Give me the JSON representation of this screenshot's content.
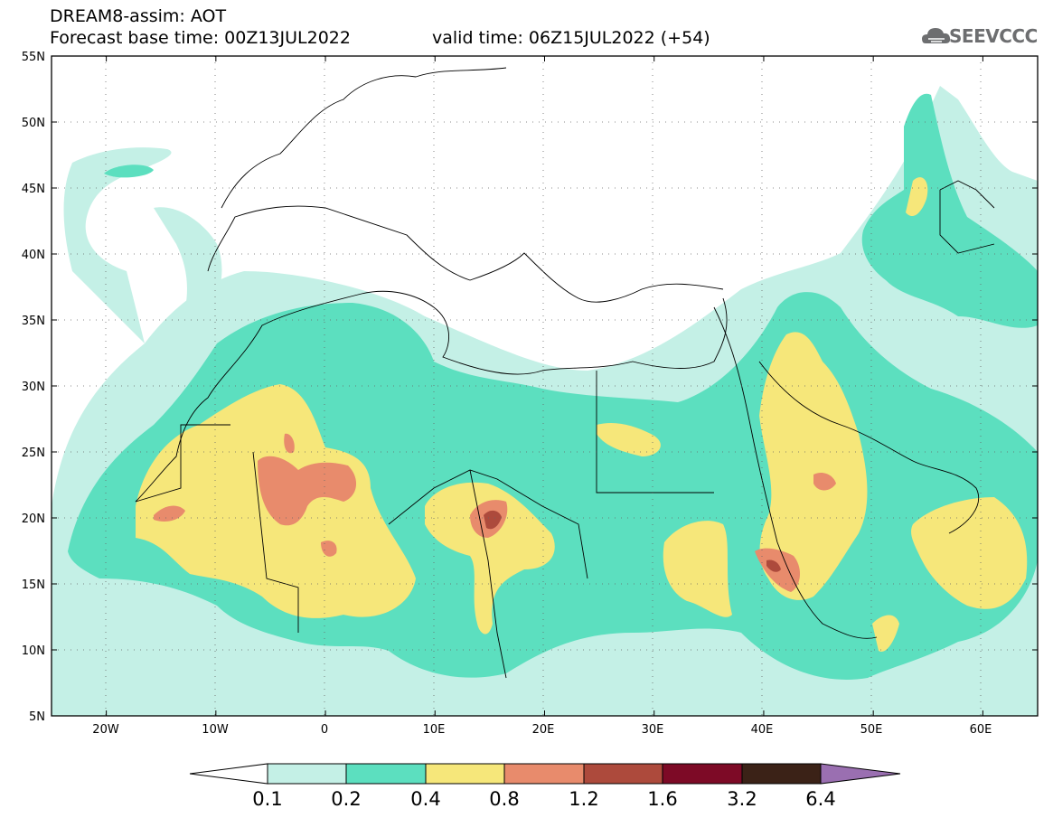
{
  "header": {
    "line1": "DREAM8-assim: AOT",
    "line2": "Forecast base time: 00Z13JUL2022",
    "valid": "valid time: 06Z15JUL2022 (+54)"
  },
  "logo": {
    "text": "SEEVCCC",
    "icon": "cloud-icon",
    "color": "#6d6e70"
  },
  "map": {
    "lon_range": [
      -25,
      65
    ],
    "lat_range": [
      5,
      55
    ],
    "x_ticks": [
      "20W",
      "10W",
      "0",
      "10E",
      "20E",
      "30E",
      "40E",
      "50E",
      "60E"
    ],
    "y_ticks": [
      "55N",
      "50N",
      "45N",
      "40N",
      "35N",
      "30N",
      "25N",
      "20N",
      "15N",
      "10N",
      "5N"
    ],
    "grid": "dotted"
  },
  "colorbar": {
    "labels": [
      "0.1",
      "0.2",
      "0.4",
      "0.8",
      "1.2",
      "1.6",
      "3.2",
      "6.4"
    ],
    "colors": [
      "#ffffff",
      "#c4f0e6",
      "#5cdfbf",
      "#f6e77a",
      "#e88b6c",
      "#ad4a3c",
      "#7d0a26",
      "#3b2217",
      "#9a6fb1"
    ]
  }
}
